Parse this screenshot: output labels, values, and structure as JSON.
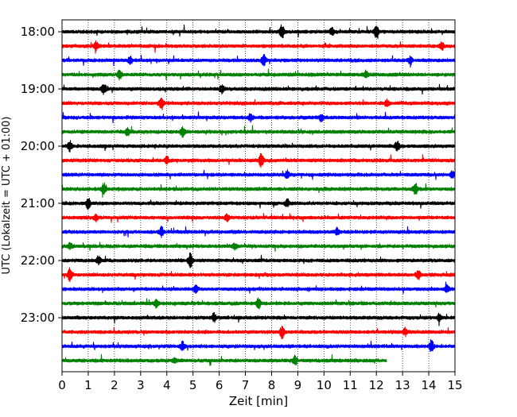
{
  "chart_data": {
    "type": "line",
    "title": "",
    "xlabel": "Zeit  [min]",
    "ylabel": "UTC (Lokalzeit = UTC + 01:00)",
    "xlim": [
      0,
      15
    ],
    "x_ticks": [
      "0",
      "1",
      "2",
      "3",
      "4",
      "5",
      "6",
      "7",
      "8",
      "9",
      "10",
      "11",
      "12",
      "13",
      "14",
      "15"
    ],
    "y_tick_labels": [
      "18:00",
      "19:00",
      "20:00",
      "21:00",
      "22:00",
      "23:00"
    ],
    "row_interval_minutes": 15,
    "color_cycle": [
      "#000000",
      "#ff0000",
      "#0000ff",
      "#008000"
    ],
    "grid": "vertical dotted lines at each minute",
    "traces": [
      {
        "start": "18:00",
        "color": "#000000",
        "end_min": 15,
        "events": [
          [
            8.4,
            1.0
          ],
          [
            12.0,
            1.0
          ],
          [
            10.3,
            0.6
          ]
        ]
      },
      {
        "start": "18:15",
        "color": "#ff0000",
        "end_min": 15,
        "events": [
          [
            1.3,
            0.6
          ],
          [
            14.5,
            0.6
          ]
        ]
      },
      {
        "start": "18:30",
        "color": "#0000ff",
        "end_min": 15,
        "events": [
          [
            7.7,
            0.9
          ],
          [
            2.6,
            0.5
          ],
          [
            13.3,
            0.5
          ]
        ]
      },
      {
        "start": "18:45",
        "color": "#008000",
        "end_min": 15,
        "events": [
          [
            2.2,
            0.6
          ],
          [
            11.6,
            0.5
          ]
        ]
      },
      {
        "start": "19:00",
        "color": "#000000",
        "end_min": 15,
        "events": [
          [
            1.6,
            0.8
          ],
          [
            6.1,
            0.5
          ]
        ]
      },
      {
        "start": "19:15",
        "color": "#ff0000",
        "end_min": 15,
        "events": [
          [
            3.8,
            0.9
          ],
          [
            12.4,
            0.5
          ]
        ]
      },
      {
        "start": "19:30",
        "color": "#0000ff",
        "end_min": 15,
        "events": [
          [
            7.2,
            0.5
          ],
          [
            9.9,
            0.5
          ]
        ]
      },
      {
        "start": "19:45",
        "color": "#008000",
        "end_min": 15,
        "events": [
          [
            4.6,
            0.7
          ],
          [
            2.5,
            0.5
          ]
        ]
      },
      {
        "start": "20:00",
        "color": "#000000",
        "end_min": 15,
        "events": [
          [
            0.3,
            0.7
          ],
          [
            12.8,
            0.8
          ]
        ]
      },
      {
        "start": "20:15",
        "color": "#ff0000",
        "end_min": 15,
        "events": [
          [
            7.6,
            1.0
          ],
          [
            4.0,
            0.5
          ]
        ]
      },
      {
        "start": "20:30",
        "color": "#0000ff",
        "end_min": 15,
        "events": [
          [
            8.6,
            0.6
          ],
          [
            14.9,
            0.5
          ]
        ]
      },
      {
        "start": "20:45",
        "color": "#008000",
        "end_min": 15,
        "events": [
          [
            1.6,
            0.9
          ],
          [
            13.5,
            0.9
          ]
        ]
      },
      {
        "start": "21:00",
        "color": "#000000",
        "end_min": 15,
        "events": [
          [
            1.0,
            0.7
          ],
          [
            8.6,
            0.5
          ]
        ]
      },
      {
        "start": "21:15",
        "color": "#ff0000",
        "end_min": 15,
        "events": [
          [
            1.3,
            0.5
          ],
          [
            6.3,
            0.5
          ]
        ]
      },
      {
        "start": "21:30",
        "color": "#0000ff",
        "end_min": 15,
        "events": [
          [
            3.8,
            0.6
          ],
          [
            10.5,
            0.5
          ]
        ]
      },
      {
        "start": "21:45",
        "color": "#008000",
        "end_min": 15,
        "events": [
          [
            0.3,
            0.4
          ],
          [
            6.6,
            0.4
          ]
        ]
      },
      {
        "start": "22:00",
        "color": "#000000",
        "end_min": 15,
        "events": [
          [
            4.9,
            1.0
          ],
          [
            1.4,
            0.6
          ]
        ]
      },
      {
        "start": "22:15",
        "color": "#ff0000",
        "end_min": 15,
        "events": [
          [
            0.3,
            1.0
          ],
          [
            13.6,
            0.6
          ]
        ]
      },
      {
        "start": "22:30",
        "color": "#0000ff",
        "end_min": 15,
        "events": [
          [
            5.1,
            0.5
          ],
          [
            14.7,
            0.5
          ]
        ]
      },
      {
        "start": "22:45",
        "color": "#008000",
        "end_min": 15,
        "events": [
          [
            3.6,
            0.6
          ],
          [
            7.5,
            0.8
          ]
        ]
      },
      {
        "start": "23:00",
        "color": "#000000",
        "end_min": 15,
        "events": [
          [
            5.8,
            0.6
          ],
          [
            14.4,
            0.5
          ]
        ]
      },
      {
        "start": "23:15",
        "color": "#ff0000",
        "end_min": 15,
        "events": [
          [
            8.4,
            0.8
          ],
          [
            13.1,
            0.5
          ]
        ]
      },
      {
        "start": "23:30",
        "color": "#0000ff",
        "end_min": 15,
        "events": [
          [
            4.6,
            0.6
          ],
          [
            14.1,
            0.8
          ]
        ]
      },
      {
        "start": "23:45",
        "color": "#008000",
        "end_min": 12.4,
        "events": [
          [
            8.9,
            0.6
          ],
          [
            4.3,
            0.4
          ]
        ]
      }
    ]
  }
}
